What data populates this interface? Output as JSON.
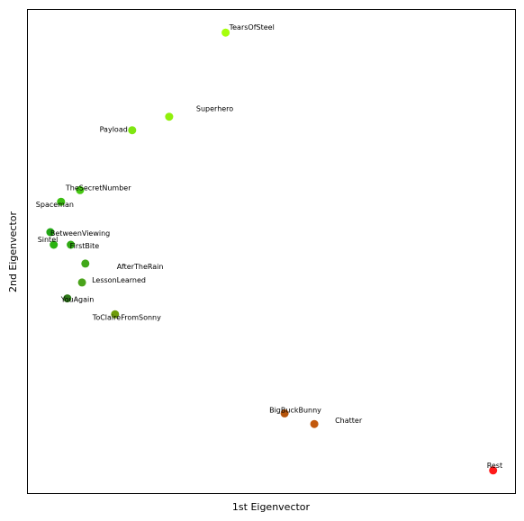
{
  "chart_data": {
    "type": "scatter",
    "title": "",
    "xlabel": "1st Eigenvector",
    "ylabel": "2nd Eigenvector",
    "xlim": [
      0,
      1
    ],
    "ylim": [
      0,
      1
    ],
    "grid": false,
    "ticks": false,
    "points": [
      {
        "label": "TearsOfSteel",
        "x": 0.406,
        "y": 0.953,
        "color": "#a6ff0b"
      },
      {
        "label": "Superhero",
        "x": 0.29,
        "y": 0.779,
        "color": "#90f00b"
      },
      {
        "label": "Payload",
        "x": 0.214,
        "y": 0.751,
        "color": "#7fe611"
      },
      {
        "label": "TheSecretNumber",
        "x": 0.107,
        "y": 0.627,
        "color": "#45c812"
      },
      {
        "label": "Spaceman",
        "x": 0.068,
        "y": 0.603,
        "color": "#3cbe12"
      },
      {
        "label": "BetweenViewing",
        "x": 0.046,
        "y": 0.54,
        "color": "#22a615"
      },
      {
        "label": "Sintel",
        "x": 0.053,
        "y": 0.514,
        "color": "#29b20f"
      },
      {
        "label": "FirstBite",
        "x": 0.088,
        "y": 0.514,
        "color": "#30aa14"
      },
      {
        "label": "AfterTheRain",
        "x": 0.118,
        "y": 0.475,
        "color": "#41a81a"
      },
      {
        "label": "LessonLearned",
        "x": 0.111,
        "y": 0.436,
        "color": "#4aa31b"
      },
      {
        "label": "YouAgain",
        "x": 0.081,
        "y": 0.403,
        "color": "#2e7a18"
      },
      {
        "label": "ToClaireFromSonny",
        "x": 0.179,
        "y": 0.37,
        "color": "#6e9c0b"
      },
      {
        "label": "BigBuckBunny",
        "x": 0.527,
        "y": 0.165,
        "color": "#b5540b"
      },
      {
        "label": "Chatter",
        "x": 0.588,
        "y": 0.143,
        "color": "#c2580c"
      },
      {
        "label": "Rest",
        "x": 0.955,
        "y": 0.047,
        "color": "#ff1a1a"
      }
    ]
  }
}
